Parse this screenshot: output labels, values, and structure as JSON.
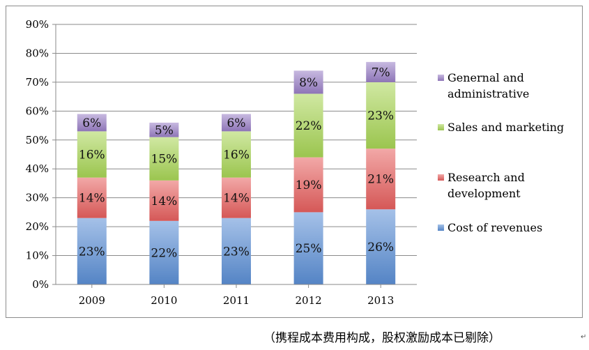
{
  "chart_data": {
    "type": "bar",
    "stacked": true,
    "categories": [
      "2009",
      "2010",
      "2011",
      "2012",
      "2013"
    ],
    "series": [
      {
        "name": "Cost of revenues",
        "values": [
          23,
          22,
          23,
          25,
          26
        ],
        "labels": [
          "23%",
          "22%",
          "23%",
          "25%",
          "26%"
        ],
        "color": "#5b8fd6"
      },
      {
        "name": "Research and development",
        "values": [
          14,
          14,
          14,
          19,
          21
        ],
        "labels": [
          "14%",
          "14%",
          "14%",
          "19%",
          "21%"
        ],
        "color": "#e8605f"
      },
      {
        "name": "Sales and marketing",
        "values": [
          16,
          15,
          16,
          22,
          23
        ],
        "labels": [
          "16%",
          "15%",
          "16%",
          "22%",
          "23%"
        ],
        "color": "#a9d656"
      },
      {
        "name": "Genernal and administrative",
        "values": [
          6,
          5,
          6,
          8,
          7
        ],
        "labels": [
          "6%",
          "5%",
          "6%",
          "8%",
          "7%"
        ],
        "color": "#9a7fc7"
      }
    ],
    "y_ticks": [
      "0%",
      "10%",
      "20%",
      "30%",
      "40%",
      "50%",
      "60%",
      "70%",
      "80%",
      "90%"
    ],
    "ylim": [
      0,
      90
    ],
    "grid": true,
    "legend_position": "right",
    "legend": [
      {
        "lines": [
          "Genernal and",
          "administrative"
        ],
        "color": "#9a7fc7"
      },
      {
        "lines": [
          "Sales and marketing"
        ],
        "color": "#a9d656"
      },
      {
        "lines": [
          "Research and",
          "development"
        ],
        "color": "#e8605f"
      },
      {
        "lines": [
          "Cost of revenues"
        ],
        "color": "#5b8fd6"
      }
    ]
  },
  "caption": "（携程成本费用构成，股权激励成本已剔除）",
  "caption_mark": "↵"
}
